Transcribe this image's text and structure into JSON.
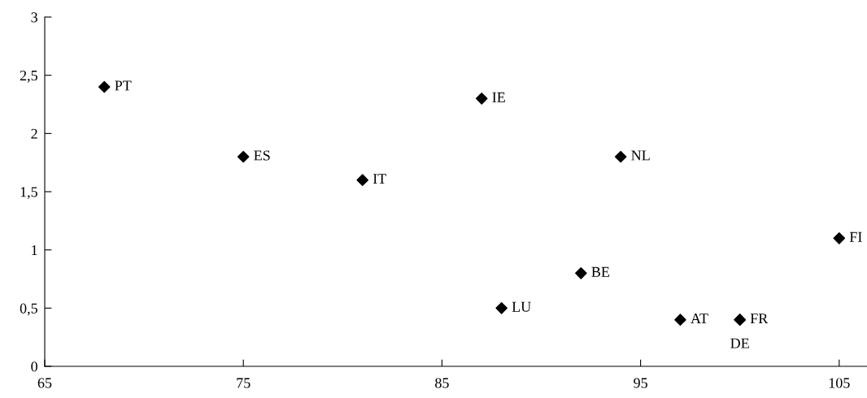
{
  "chart_data": {
    "type": "scatter",
    "x": [
      68,
      75,
      81,
      87,
      94,
      105,
      92,
      88,
      97,
      100,
      100
    ],
    "values": [
      2.4,
      1.8,
      1.6,
      2.3,
      1.8,
      1.1,
      0.8,
      0.5,
      0.4,
      0.4,
      0.4
    ],
    "color": "#000000",
    "marker": "diamond",
    "annotations": [
      {
        "text": "PT",
        "x": 68,
        "y": 2.4
      },
      {
        "text": "ES",
        "x": 75,
        "y": 1.8
      },
      {
        "text": "IT",
        "x": 81,
        "y": 1.6
      },
      {
        "text": "IE",
        "x": 87,
        "y": 2.3
      },
      {
        "text": "NL",
        "x": 94,
        "y": 1.8
      },
      {
        "text": "FI",
        "x": 105,
        "y": 1.1
      },
      {
        "text": "BE",
        "x": 92,
        "y": 0.8
      },
      {
        "text": "LU",
        "x": 88,
        "y": 0.5
      },
      {
        "text": "AT",
        "x": 97,
        "y": 0.4
      },
      {
        "text": "FR",
        "x": 100,
        "y": 0.4
      },
      {
        "text": "DE",
        "x": 100,
        "y": 0.4
      }
    ],
    "xlim": [
      65,
      106.4
    ],
    "ylim": [
      0,
      3
    ],
    "xticks": [
      65,
      75,
      85,
      95,
      105
    ],
    "yticks": [
      0,
      {
        "value": 0.5,
        "label": "0,5"
      },
      1,
      {
        "value": 1.5,
        "label": "1,5"
      },
      2,
      {
        "value": 2.5,
        "label": "2,5"
      },
      3
    ],
    "grid": false,
    "legend": false
  }
}
